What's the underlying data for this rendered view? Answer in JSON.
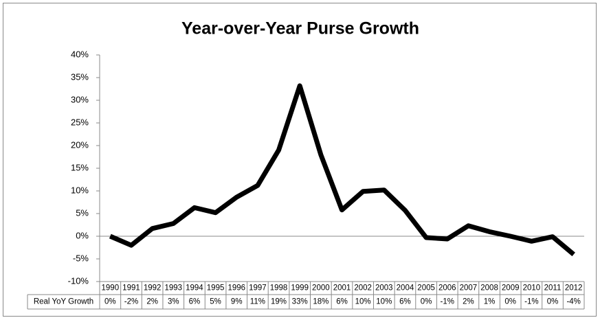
{
  "chart_data": {
    "type": "line",
    "title": "Year-over-Year Purse Growth",
    "categories": [
      "1990",
      "1991",
      "1992",
      "1993",
      "1994",
      "1995",
      "1996",
      "1997",
      "1998",
      "1999",
      "2000",
      "2001",
      "2002",
      "2003",
      "2004",
      "2005",
      "2006",
      "2007",
      "2008",
      "2009",
      "2010",
      "2011",
      "2012"
    ],
    "series": [
      {
        "name": "Real YoY Growth",
        "color": "#000000",
        "values": [
          0.0,
          -2.0,
          1.7,
          2.8,
          6.3,
          5.2,
          8.6,
          11.2,
          19.0,
          33.2,
          18.0,
          5.8,
          9.9,
          10.2,
          5.7,
          -0.3,
          -0.6,
          2.3,
          1.0,
          0.0,
          -1.1,
          -0.1,
          -4.0
        ],
        "value_labels": [
          "0%",
          "-2%",
          "2%",
          "3%",
          "6%",
          "5%",
          "9%",
          "11%",
          "19%",
          "33%",
          "18%",
          "6%",
          "10%",
          "10%",
          "6%",
          "0%",
          "-1%",
          "2%",
          "1%",
          "0%",
          "-1%",
          "0%",
          "-4%"
        ]
      }
    ],
    "ylim": [
      -10,
      40
    ],
    "yticks": [
      {
        "value": -10,
        "label": "-10%"
      },
      {
        "value": -5,
        "label": "-5%"
      },
      {
        "value": 0,
        "label": "0%"
      },
      {
        "value": 5,
        "label": "5%"
      },
      {
        "value": 10,
        "label": "10%"
      },
      {
        "value": 15,
        "label": "15%"
      },
      {
        "value": 20,
        "label": "20%"
      },
      {
        "value": 25,
        "label": "25%"
      },
      {
        "value": 30,
        "label": "30%"
      },
      {
        "value": 35,
        "label": "35%"
      },
      {
        "value": 40,
        "label": "40%"
      }
    ],
    "grid": false,
    "data_table": true
  }
}
